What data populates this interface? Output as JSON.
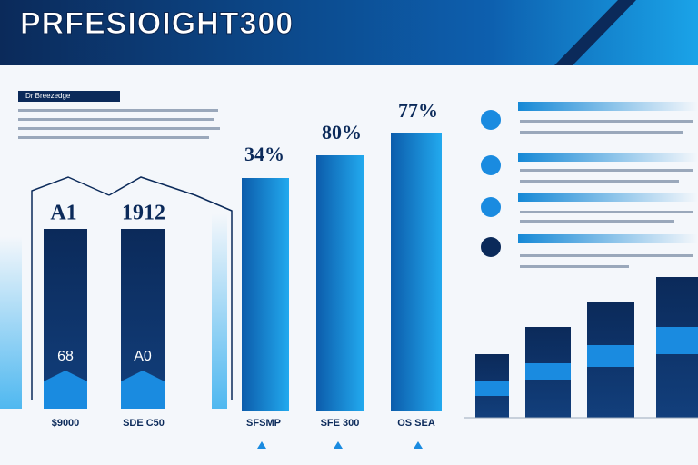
{
  "header": {
    "title": "PRFESIOIGHT300"
  },
  "intro": {
    "heading": "Dr Breezedge"
  },
  "columns": [
    {
      "label": "A1",
      "inner": "68",
      "caption": "$9000"
    },
    {
      "label": "1912",
      "inner": "A0",
      "caption": "SDE C50"
    }
  ],
  "bars": [
    {
      "label": "34%",
      "caption": "SFSMP"
    },
    {
      "label": "80%",
      "caption": "SFE 300"
    },
    {
      "label": "77%",
      "caption": "OS SEA"
    }
  ]
}
